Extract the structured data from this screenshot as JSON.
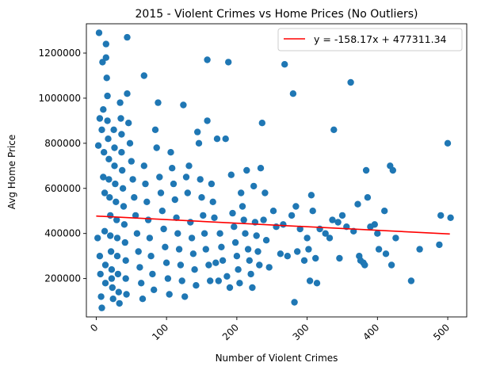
{
  "chart_data": {
    "type": "scatter",
    "title": "2015 - Violent Crimes vs Home Prices (No Outliers)",
    "xlabel": "Number of Violent Crimes",
    "ylabel": "Avg Home Price",
    "xlim": [
      -14,
      527
    ],
    "ylim": [
      30000,
      1330000
    ],
    "xticks": [
      0,
      100,
      200,
      300,
      400,
      500
    ],
    "yticks": [
      200000,
      400000,
      600000,
      800000,
      1000000,
      1200000
    ],
    "xtick_rotation": 45,
    "grid": false,
    "legend": {
      "position": "top-right",
      "entries": [
        "y = -158.17x + 477311.34"
      ]
    },
    "point_color": "#1f77b4",
    "line_color": "#ff0000",
    "regression": {
      "slope": -158.17,
      "intercept": 477311.34,
      "x_range": [
        0,
        503
      ]
    },
    "points": [
      [
        2,
        380000
      ],
      [
        3,
        790000
      ],
      [
        4,
        1290000
      ],
      [
        5,
        910000
      ],
      [
        5,
        300000
      ],
      [
        6,
        220000
      ],
      [
        7,
        120000
      ],
      [
        8,
        70000
      ],
      [
        8,
        860000
      ],
      [
        9,
        1160000
      ],
      [
        10,
        950000
      ],
      [
        10,
        650000
      ],
      [
        11,
        760000
      ],
      [
        12,
        580000
      ],
      [
        12,
        410000
      ],
      [
        13,
        260000
      ],
      [
        13,
        180000
      ],
      [
        14,
        1240000
      ],
      [
        14,
        1180000
      ],
      [
        15,
        1090000
      ],
      [
        16,
        1010000
      ],
      [
        16,
        900000
      ],
      [
        17,
        820000
      ],
      [
        18,
        730000
      ],
      [
        18,
        640000
      ],
      [
        19,
        560000
      ],
      [
        20,
        480000
      ],
      [
        20,
        390000
      ],
      [
        21,
        320000
      ],
      [
        22,
        240000
      ],
      [
        22,
        200000
      ],
      [
        23,
        160000
      ],
      [
        24,
        110000
      ],
      [
        25,
        860000
      ],
      [
        26,
        780000
      ],
      [
        26,
        700000
      ],
      [
        27,
        620000
      ],
      [
        28,
        540000
      ],
      [
        29,
        460000
      ],
      [
        30,
        380000
      ],
      [
        30,
        300000
      ],
      [
        31,
        220000
      ],
      [
        32,
        140000
      ],
      [
        33,
        90000
      ],
      [
        34,
        980000
      ],
      [
        35,
        910000
      ],
      [
        36,
        840000
      ],
      [
        36,
        760000
      ],
      [
        37,
        680000
      ],
      [
        38,
        600000
      ],
      [
        39,
        520000
      ],
      [
        40,
        440000
      ],
      [
        41,
        360000
      ],
      [
        42,
        280000
      ],
      [
        42,
        200000
      ],
      [
        43,
        130000
      ],
      [
        44,
        1270000
      ],
      [
        44,
        1020000
      ],
      [
        46,
        890000
      ],
      [
        48,
        800000
      ],
      [
        50,
        720000
      ],
      [
        52,
        640000
      ],
      [
        54,
        560000
      ],
      [
        56,
        480000
      ],
      [
        58,
        400000
      ],
      [
        60,
        320000
      ],
      [
        62,
        250000
      ],
      [
        64,
        180000
      ],
      [
        66,
        110000
      ],
      [
        68,
        1100000
      ],
      [
        68,
        700000
      ],
      [
        70,
        620000
      ],
      [
        72,
        540000
      ],
      [
        74,
        460000
      ],
      [
        76,
        380000
      ],
      [
        78,
        300000
      ],
      [
        80,
        220000
      ],
      [
        82,
        150000
      ],
      [
        84,
        860000
      ],
      [
        86,
        780000
      ],
      [
        88,
        980000
      ],
      [
        90,
        650000
      ],
      [
        92,
        580000
      ],
      [
        94,
        500000
      ],
      [
        96,
        420000
      ],
      [
        98,
        340000
      ],
      [
        100,
        270000
      ],
      [
        102,
        200000
      ],
      [
        104,
        130000
      ],
      [
        106,
        760000
      ],
      [
        108,
        690000
      ],
      [
        110,
        620000
      ],
      [
        112,
        550000
      ],
      [
        114,
        470000
      ],
      [
        116,
        400000
      ],
      [
        118,
        330000
      ],
      [
        120,
        260000
      ],
      [
        122,
        190000
      ],
      [
        124,
        970000
      ],
      [
        126,
        120000
      ],
      [
        128,
        650000
      ],
      [
        130,
        580000
      ],
      [
        132,
        700000
      ],
      [
        134,
        450000
      ],
      [
        136,
        380000
      ],
      [
        138,
        310000
      ],
      [
        140,
        240000
      ],
      [
        142,
        170000
      ],
      [
        144,
        850000
      ],
      [
        146,
        800000
      ],
      [
        148,
        640000
      ],
      [
        150,
        560000
      ],
      [
        152,
        480000
      ],
      [
        154,
        400000
      ],
      [
        156,
        330000
      ],
      [
        158,
        1170000
      ],
      [
        158,
        900000
      ],
      [
        160,
        260000
      ],
      [
        162,
        190000
      ],
      [
        164,
        620000
      ],
      [
        166,
        540000
      ],
      [
        168,
        470000
      ],
      [
        170,
        270000
      ],
      [
        172,
        820000
      ],
      [
        174,
        190000
      ],
      [
        176,
        400000
      ],
      [
        178,
        340000
      ],
      [
        180,
        280000
      ],
      [
        184,
        820000
      ],
      [
        186,
        210000
      ],
      [
        188,
        1160000
      ],
      [
        190,
        160000
      ],
      [
        192,
        660000
      ],
      [
        194,
        490000
      ],
      [
        196,
        430000
      ],
      [
        198,
        360000
      ],
      [
        200,
        300000
      ],
      [
        202,
        240000
      ],
      [
        204,
        180000
      ],
      [
        206,
        580000
      ],
      [
        208,
        520000
      ],
      [
        210,
        460000
      ],
      [
        212,
        400000
      ],
      [
        214,
        680000
      ],
      [
        216,
        330000
      ],
      [
        218,
        280000
      ],
      [
        220,
        220000
      ],
      [
        222,
        160000
      ],
      [
        224,
        610000
      ],
      [
        226,
        450000
      ],
      [
        228,
        390000
      ],
      [
        230,
        320000
      ],
      [
        232,
        260000
      ],
      [
        234,
        690000
      ],
      [
        236,
        890000
      ],
      [
        238,
        460000
      ],
      [
        240,
        580000
      ],
      [
        242,
        370000
      ],
      [
        246,
        250000
      ],
      [
        252,
        500000
      ],
      [
        256,
        430000
      ],
      [
        262,
        310000
      ],
      [
        266,
        440000
      ],
      [
        268,
        1150000
      ],
      [
        272,
        300000
      ],
      [
        278,
        480000
      ],
      [
        280,
        1020000
      ],
      [
        282,
        95000
      ],
      [
        284,
        520000
      ],
      [
        286,
        320000
      ],
      [
        290,
        420000
      ],
      [
        296,
        280000
      ],
      [
        300,
        380000
      ],
      [
        302,
        330000
      ],
      [
        304,
        190000
      ],
      [
        306,
        570000
      ],
      [
        308,
        500000
      ],
      [
        312,
        290000
      ],
      [
        314,
        180000
      ],
      [
        318,
        420000
      ],
      [
        326,
        400000
      ],
      [
        332,
        380000
      ],
      [
        336,
        460000
      ],
      [
        338,
        860000
      ],
      [
        344,
        450000
      ],
      [
        346,
        290000
      ],
      [
        350,
        480000
      ],
      [
        356,
        430000
      ],
      [
        362,
        1070000
      ],
      [
        366,
        410000
      ],
      [
        372,
        530000
      ],
      [
        374,
        300000
      ],
      [
        376,
        280000
      ],
      [
        380,
        270000
      ],
      [
        382,
        260000
      ],
      [
        384,
        680000
      ],
      [
        386,
        560000
      ],
      [
        390,
        430000
      ],
      [
        396,
        440000
      ],
      [
        400,
        400000
      ],
      [
        402,
        330000
      ],
      [
        410,
        500000
      ],
      [
        412,
        310000
      ],
      [
        418,
        700000
      ],
      [
        420,
        260000
      ],
      [
        422,
        680000
      ],
      [
        426,
        380000
      ],
      [
        448,
        190000
      ],
      [
        460,
        330000
      ],
      [
        488,
        350000
      ],
      [
        490,
        480000
      ],
      [
        500,
        800000
      ],
      [
        504,
        470000
      ]
    ]
  }
}
